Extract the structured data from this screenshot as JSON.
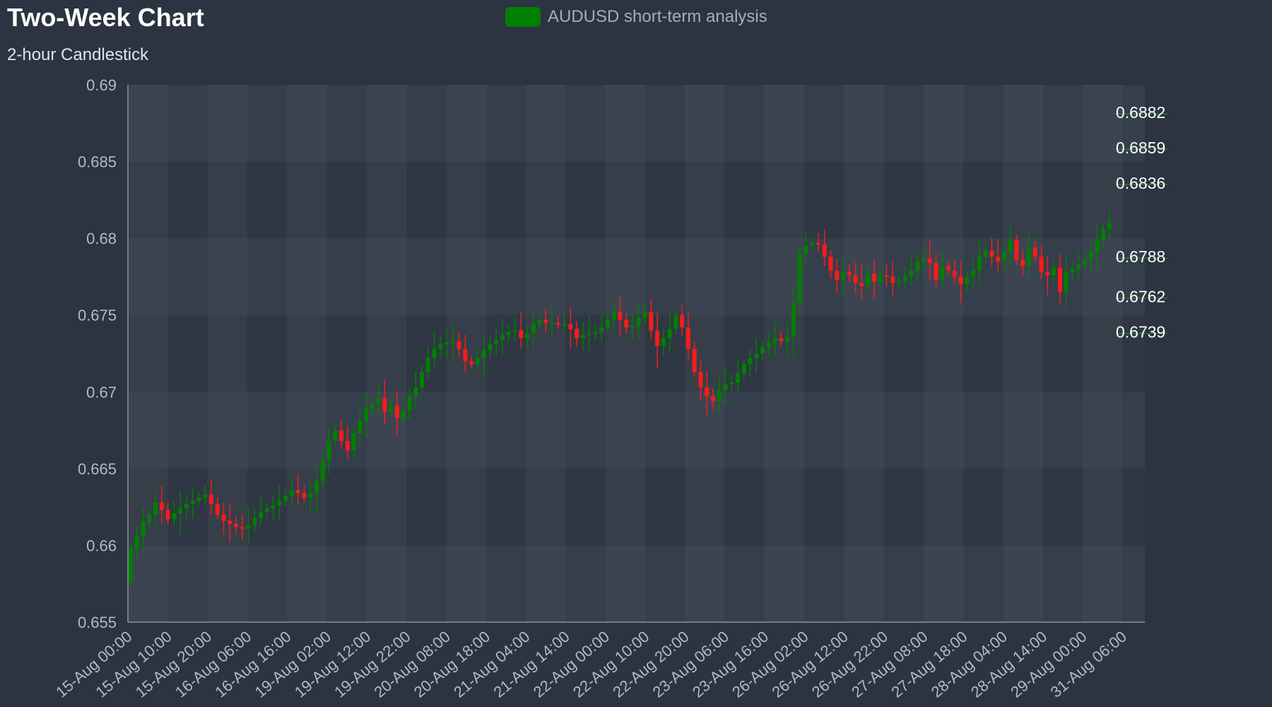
{
  "chart_data": {
    "type": "candlestick",
    "title": "Two-Week Chart",
    "subtitle": "2-hour Candlestick",
    "legend": {
      "label": "AUDUSD short-term analysis",
      "placement": "top-center",
      "swatch_color": "#008000"
    },
    "ylim": [
      0.655,
      0.69
    ],
    "y_ticks": [
      "0.69",
      "0.685",
      "0.68",
      "0.675",
      "0.67",
      "0.665",
      "0.66",
      "0.655"
    ],
    "x_ticks": [
      "15-Aug 00:00",
      "15-Aug 10:00",
      "15-Aug 20:00",
      "16-Aug 06:00",
      "16-Aug 16:00",
      "19-Aug 02:00",
      "19-Aug 12:00",
      "19-Aug 22:00",
      "20-Aug 08:00",
      "20-Aug 18:00",
      "21-Aug 04:00",
      "21-Aug 14:00",
      "22-Aug 00:00",
      "22-Aug 10:00",
      "22-Aug 20:00",
      "23-Aug 06:00",
      "23-Aug 16:00",
      "26-Aug 02:00",
      "26-Aug 12:00",
      "26-Aug 22:00",
      "27-Aug 08:00",
      "27-Aug 18:00",
      "28-Aug 04:00",
      "28-Aug 14:00",
      "29-Aug 00:00",
      "31-Aug 06:00"
    ],
    "close_path": [
      0.6598,
      0.6606,
      0.6615,
      0.662,
      0.6628,
      0.6623,
      0.6617,
      0.6621,
      0.6624,
      0.6627,
      0.6629,
      0.6631,
      0.6633,
      0.6627,
      0.662,
      0.6616,
      0.6614,
      0.6612,
      0.6611,
      0.6613,
      0.6618,
      0.6622,
      0.6624,
      0.6626,
      0.6629,
      0.6632,
      0.6636,
      0.6634,
      0.6631,
      0.6634,
      0.6642,
      0.6655,
      0.6668,
      0.6675,
      0.6668,
      0.6662,
      0.6673,
      0.6681,
      0.6689,
      0.6692,
      0.6696,
      0.6687,
      0.6691,
      0.6683,
      0.6688,
      0.6697,
      0.6703,
      0.6713,
      0.6722,
      0.6728,
      0.6731,
      0.6732,
      0.6733,
      0.6728,
      0.672,
      0.6718,
      0.6722,
      0.6727,
      0.6731,
      0.6734,
      0.6737,
      0.6739,
      0.674,
      0.6735,
      0.6738,
      0.6744,
      0.6747,
      0.6745,
      0.6745,
      0.6744,
      0.6744,
      0.6741,
      0.6735,
      0.6737,
      0.6738,
      0.6739,
      0.6742,
      0.6747,
      0.6752,
      0.6747,
      0.6742,
      0.6743,
      0.6748,
      0.6752,
      0.674,
      0.673,
      0.6735,
      0.6741,
      0.675,
      0.6742,
      0.6728,
      0.6713,
      0.6703,
      0.6697,
      0.6694,
      0.6701,
      0.6705,
      0.6706,
      0.6712,
      0.6718,
      0.6722,
      0.6725,
      0.6729,
      0.6732,
      0.6735,
      0.6733,
      0.6736,
      0.6758,
      0.679,
      0.6795,
      0.6797,
      0.6796,
      0.6788,
      0.6779,
      0.6773,
      0.6778,
      0.6776,
      0.6771,
      0.6769,
      0.6777,
      0.6772,
      0.6776,
      0.6775,
      0.6771,
      0.6772,
      0.6775,
      0.6779,
      0.6785,
      0.6787,
      0.6784,
      0.6773,
      0.6782,
      0.6779,
      0.6775,
      0.677,
      0.6775,
      0.6779,
      0.6788,
      0.6792,
      0.6788,
      0.6785,
      0.6791,
      0.6799,
      0.6786,
      0.6782,
      0.6794,
      0.6788,
      0.6778,
      0.6776,
      0.6781,
      0.6765,
      0.6778,
      0.678,
      0.6783,
      0.6786,
      0.6791,
      0.6799,
      0.6806,
      0.681
    ],
    "price_labels": [
      "0.6882",
      "0.6859",
      "0.6836",
      "0.6788",
      "0.6762",
      "0.6739"
    ],
    "price_label_values": [
      0.6882,
      0.6859,
      0.6836,
      0.6788,
      0.6762,
      0.6739
    ],
    "up_color": "#008000",
    "down_color": "#ff1a1a",
    "grid": true
  }
}
